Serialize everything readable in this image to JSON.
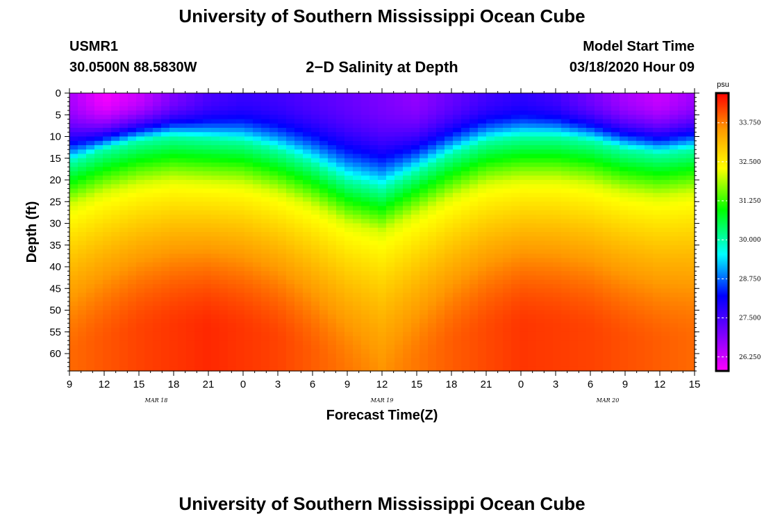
{
  "page": {
    "title_top": "University of Southern Mississippi Ocean Cube",
    "title_bottom": "University of Southern Mississippi Ocean Cube",
    "station_id": "USMR1",
    "station_coords": "30.0500N 88.5830W",
    "plot_title": "2−D Salinity at Depth",
    "model_start_label": "Model Start Time",
    "model_start_value": "03/18/2020 Hour 09"
  },
  "chart_data": {
    "type": "heatmap",
    "title": "2−D Salinity at Depth",
    "xlabel": "Forecast Time(Z)",
    "ylabel": "Depth (ft)",
    "x_range_hours": [
      0,
      54
    ],
    "y_range_ft": [
      0,
      64
    ],
    "x_ticks": [
      {
        "hour": 0,
        "label": "9"
      },
      {
        "hour": 3,
        "label": "12"
      },
      {
        "hour": 6,
        "label": "15"
      },
      {
        "hour": 9,
        "label": "18"
      },
      {
        "hour": 12,
        "label": "21"
      },
      {
        "hour": 15,
        "label": "0"
      },
      {
        "hour": 18,
        "label": "3"
      },
      {
        "hour": 21,
        "label": "6"
      },
      {
        "hour": 24,
        "label": "9"
      },
      {
        "hour": 27,
        "label": "12"
      },
      {
        "hour": 30,
        "label": "15"
      },
      {
        "hour": 33,
        "label": "18"
      },
      {
        "hour": 36,
        "label": "21"
      },
      {
        "hour": 39,
        "label": "0"
      },
      {
        "hour": 42,
        "label": "3"
      },
      {
        "hour": 45,
        "label": "6"
      },
      {
        "hour": 48,
        "label": "9"
      },
      {
        "hour": 51,
        "label": "12"
      },
      {
        "hour": 54,
        "label": "15"
      }
    ],
    "date_labels": [
      {
        "hour": 7.5,
        "label": "MAR 18"
      },
      {
        "hour": 27,
        "label": "MAR 19"
      },
      {
        "hour": 46.5,
        "label": "MAR 20"
      }
    ],
    "y_ticks": [
      0,
      5,
      10,
      15,
      20,
      25,
      30,
      35,
      40,
      45,
      50,
      55,
      60
    ],
    "colorbar": {
      "unit": "psu",
      "min": 25.8,
      "max": 34.7,
      "ticks": [
        {
          "value": 26.25,
          "label": "26.250"
        },
        {
          "value": 27.5,
          "label": "27.500"
        },
        {
          "value": 28.75,
          "label": "28.750"
        },
        {
          "value": 30.0,
          "label": "30.000"
        },
        {
          "value": 31.25,
          "label": "31.250"
        },
        {
          "value": 32.5,
          "label": "32.500"
        },
        {
          "value": 33.75,
          "label": "33.750"
        }
      ]
    },
    "thermocline_depth_ft": [
      {
        "hour": 0,
        "depth": 16
      },
      {
        "hour": 3,
        "depth": 13
      },
      {
        "hour": 6,
        "depth": 11
      },
      {
        "hour": 9,
        "depth": 10
      },
      {
        "hour": 12,
        "depth": 10.5
      },
      {
        "hour": 15,
        "depth": 11
      },
      {
        "hour": 18,
        "depth": 13
      },
      {
        "hour": 21,
        "depth": 16
      },
      {
        "hour": 24,
        "depth": 20
      },
      {
        "hour": 27,
        "depth": 22
      },
      {
        "hour": 30,
        "depth": 18
      },
      {
        "hour": 33,
        "depth": 14
      },
      {
        "hour": 36,
        "depth": 11
      },
      {
        "hour": 39,
        "depth": 10
      },
      {
        "hour": 42,
        "depth": 10
      },
      {
        "hour": 45,
        "depth": 11
      },
      {
        "hour": 48,
        "depth": 13
      },
      {
        "hour": 51,
        "depth": 14
      },
      {
        "hour": 54,
        "depth": 13
      }
    ],
    "surface_salinity_psu": [
      {
        "hour": 0,
        "value": 26.6
      },
      {
        "hour": 3,
        "value": 25.9
      },
      {
        "hour": 6,
        "value": 26.3
      },
      {
        "hour": 9,
        "value": 27.0
      },
      {
        "hour": 12,
        "value": 27.5
      },
      {
        "hour": 15,
        "value": 27.7
      },
      {
        "hour": 18,
        "value": 27.6
      },
      {
        "hour": 21,
        "value": 27.4
      },
      {
        "hour": 24,
        "value": 27.2
      },
      {
        "hour": 27,
        "value": 27.0
      },
      {
        "hour": 30,
        "value": 26.8
      },
      {
        "hour": 33,
        "value": 27.2
      },
      {
        "hour": 36,
        "value": 27.6
      },
      {
        "hour": 39,
        "value": 27.8
      },
      {
        "hour": 42,
        "value": 27.6
      },
      {
        "hour": 45,
        "value": 27.1
      },
      {
        "hour": 48,
        "value": 26.6
      },
      {
        "hour": 51,
        "value": 26.3
      },
      {
        "hour": 54,
        "value": 26.7
      }
    ],
    "deep_salinity_psu": [
      {
        "hour": 0,
        "value": 33.9
      },
      {
        "hour": 6,
        "value": 34.2
      },
      {
        "hour": 12,
        "value": 34.4
      },
      {
        "hour": 18,
        "value": 34.2
      },
      {
        "hour": 24,
        "value": 33.8
      },
      {
        "hour": 27,
        "value": 33.6
      },
      {
        "hour": 33,
        "value": 34.0
      },
      {
        "hour": 39,
        "value": 34.3
      },
      {
        "hour": 45,
        "value": 34.2
      },
      {
        "hour": 51,
        "value": 34.0
      },
      {
        "hour": 54,
        "value": 33.9
      }
    ]
  }
}
